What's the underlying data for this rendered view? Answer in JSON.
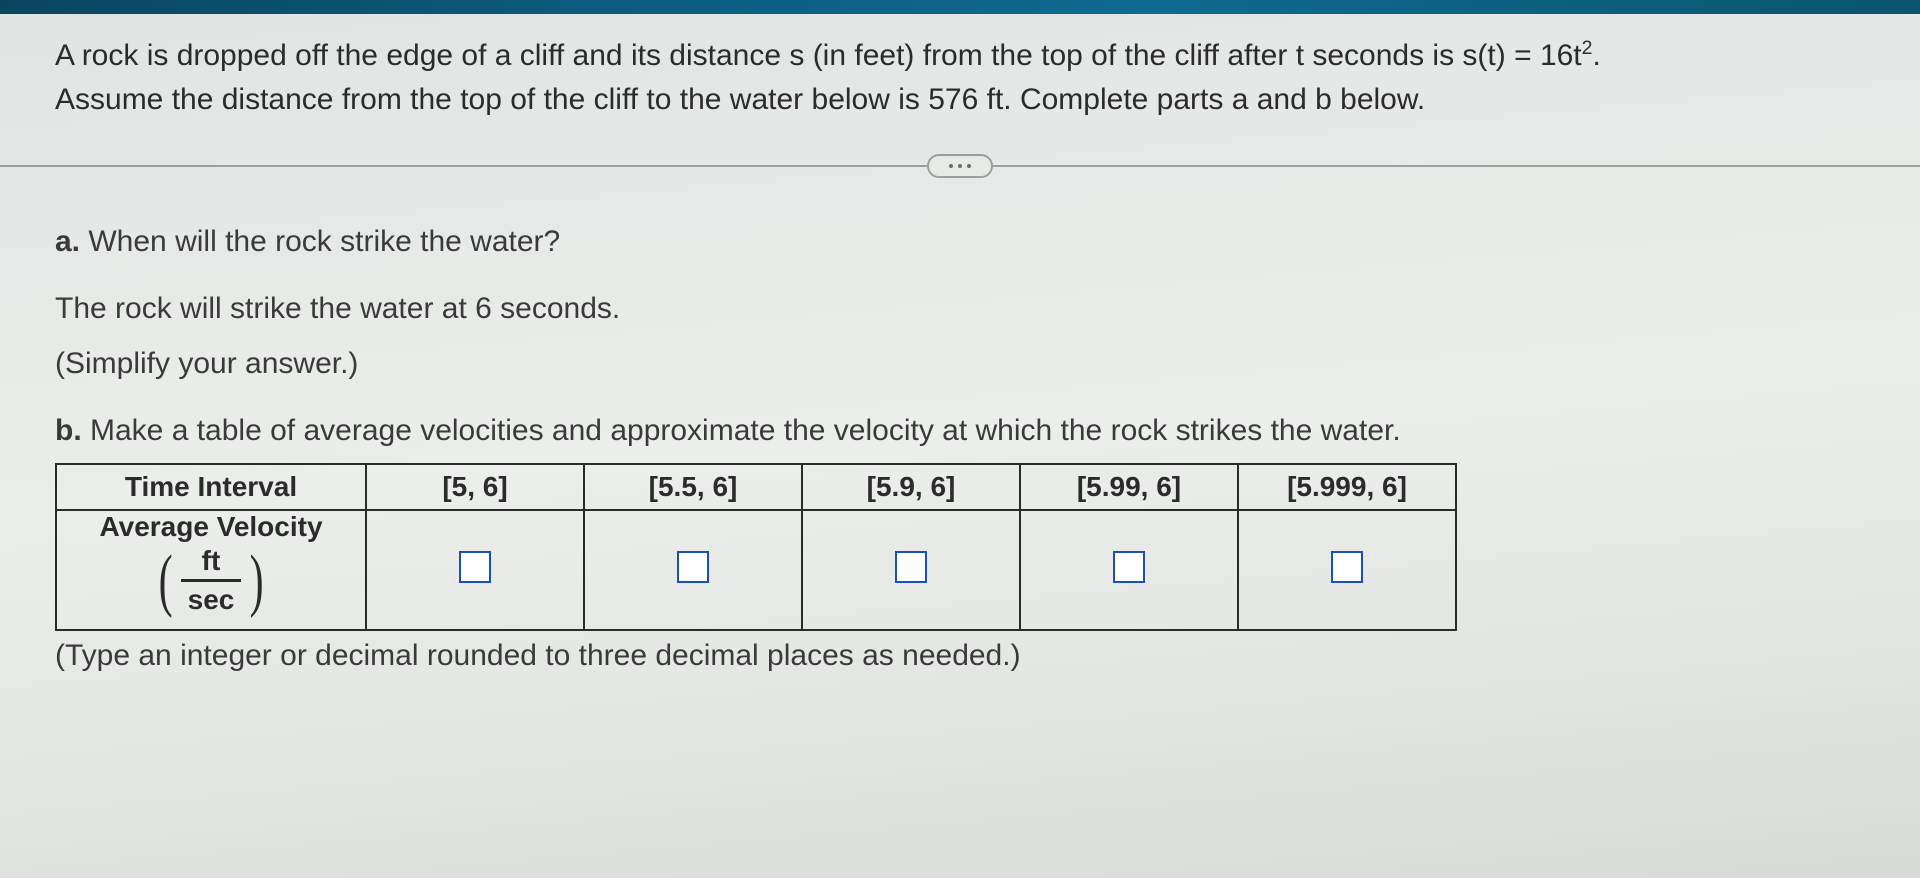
{
  "problem": {
    "line1_pre": "A rock is dropped off the edge of a cliff and its distance s (in feet) from the top of the cliff after t seconds is s(t) = 16t",
    "line1_sup": "2",
    "line1_post": ".",
    "line2": "Assume the distance from the top of the cliff to the water below is 576 ft. Complete parts a and b below."
  },
  "part_a": {
    "label": "a.",
    "question": " When will the rock strike the water?",
    "answer_pre": "The rock will strike the water at ",
    "answer_value": "6",
    "answer_post": " seconds.",
    "hint": "(Simplify your answer.)"
  },
  "part_b": {
    "label": "b.",
    "question": " Make a table of average velocities and approximate the velocity at which the rock strikes the water.",
    "table": {
      "row_header_1": "Time Interval",
      "row_header_2": "Average Velocity",
      "unit_num": "ft",
      "unit_den": "sec",
      "intervals": [
        "[5, 6]",
        "[5.5, 6]",
        "[5.9, 6]",
        "[5.99, 6]",
        "[5.999, 6]"
      ]
    },
    "footnote": "(Type an integer or decimal rounded to three decimal places as needed.)"
  },
  "style": {
    "text_color": "#3a3a3a",
    "border_color": "#2b2b2b",
    "input_border_color": "#1a4fc2",
    "input_bg": "#ffffff",
    "top_bar_gradient": [
      "#0a4560",
      "#0e6a8f"
    ],
    "bg_gradient": [
      "#dfe4e3",
      "#eceeec",
      "#d8dad8"
    ],
    "font_family": "Arial",
    "base_fontsize_pt": 22
  }
}
